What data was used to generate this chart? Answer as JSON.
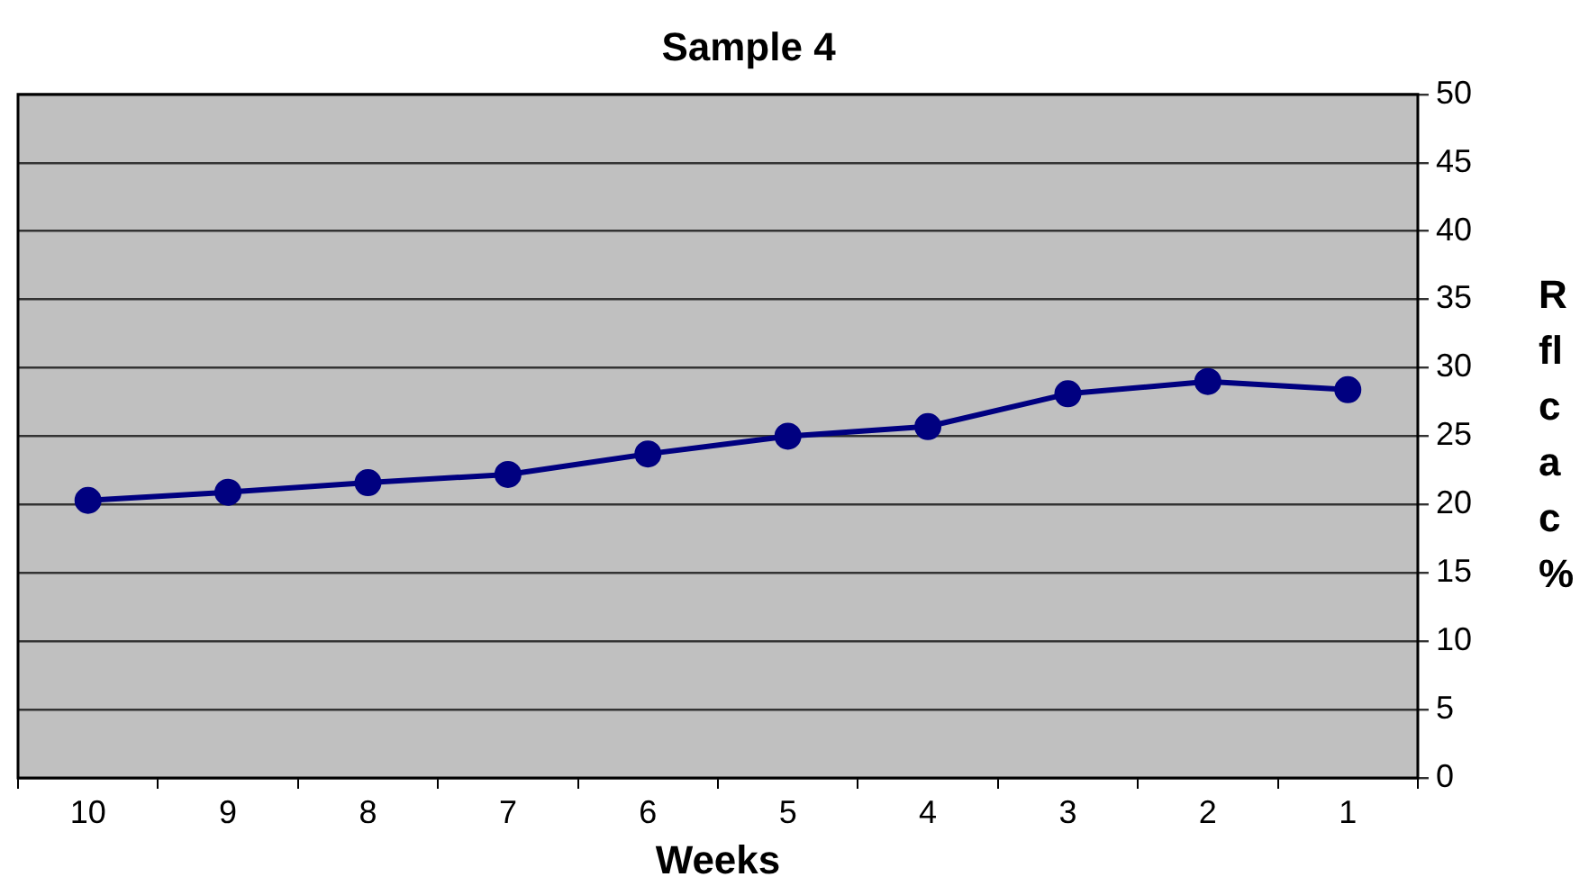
{
  "chart_data": {
    "type": "line",
    "title": "Sample 4",
    "xlabel": "Weeks",
    "ylabel": "R fl c a c %",
    "categories": [
      "10",
      "9",
      "8",
      "7",
      "6",
      "5",
      "4",
      "3",
      "2",
      "1"
    ],
    "series": [
      {
        "color": "#000080",
        "values": [
          20.3,
          20.9,
          21.6,
          22.2,
          23.7,
          25.0,
          25.7,
          28.1,
          29.0,
          28.4
        ]
      }
    ],
    "ylim": [
      0,
      50
    ],
    "yticks": [
      0,
      5,
      10,
      15,
      20,
      25,
      30,
      35,
      40,
      45,
      50
    ],
    "grid": "y",
    "legend": false,
    "marker": "circle",
    "line_style": "solid"
  }
}
